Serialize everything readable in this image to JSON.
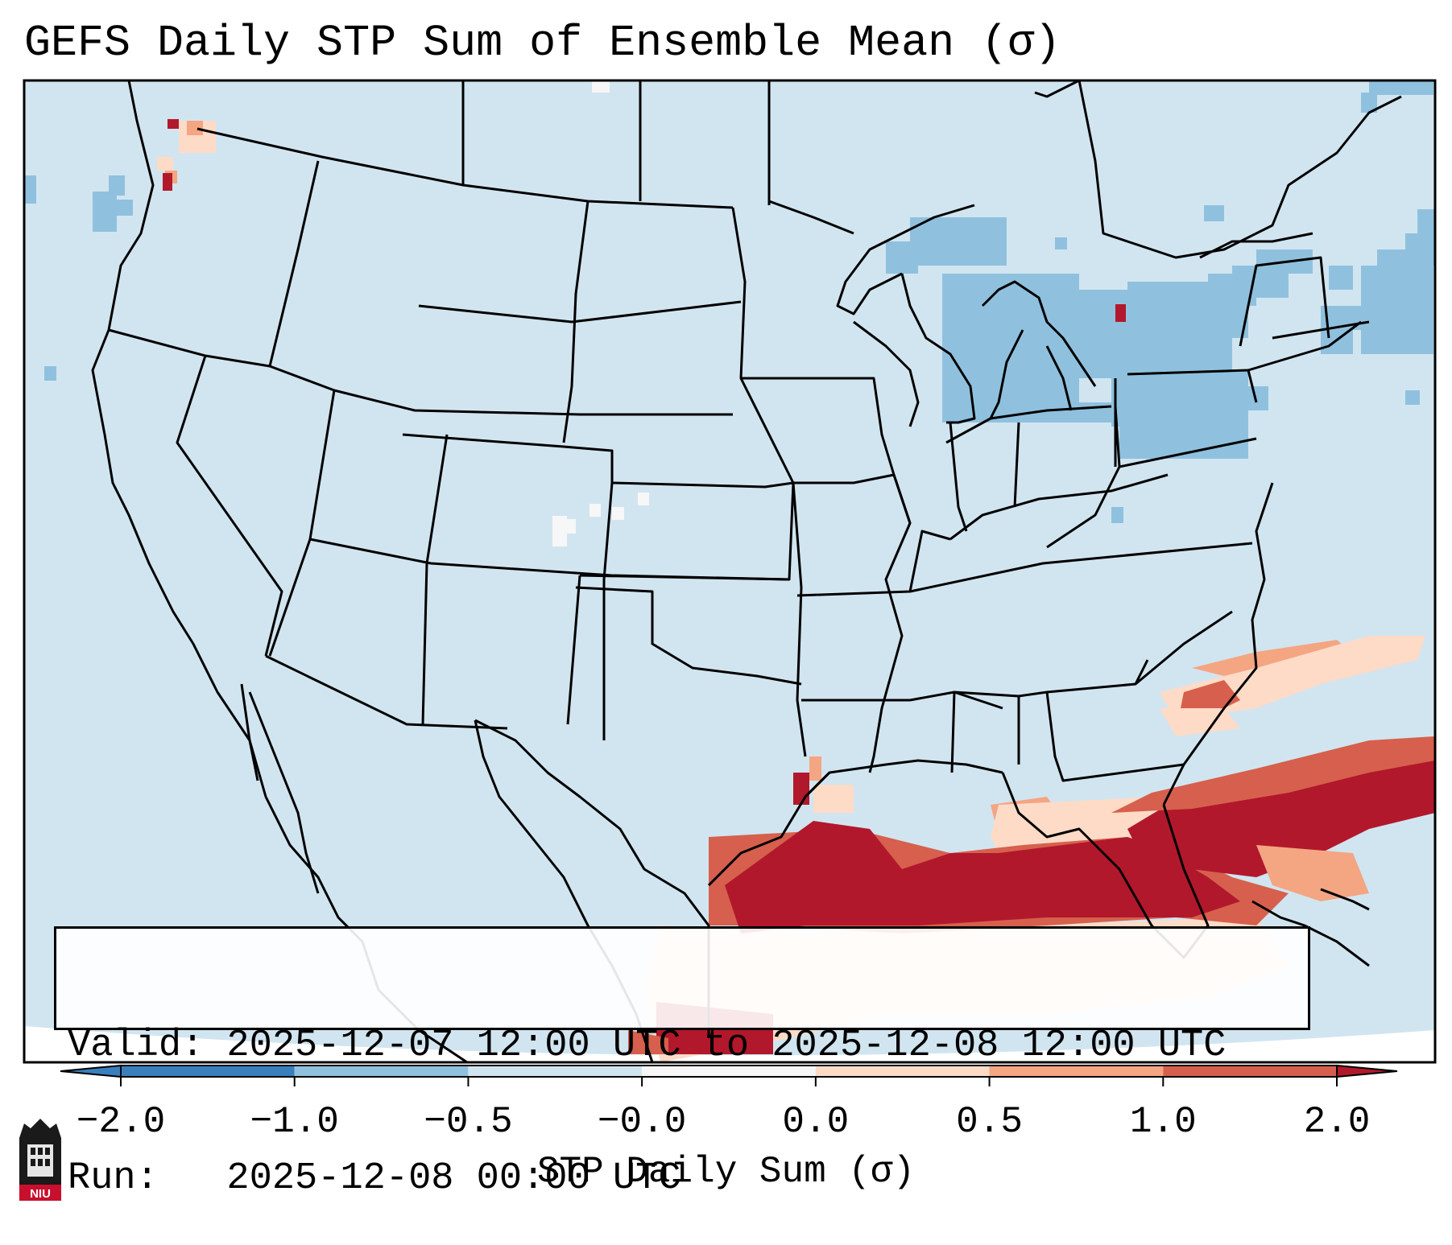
{
  "title": "GEFS Daily STP Sum of Ensemble Mean (σ)",
  "info": {
    "valid": "Valid: 2025-12-07 12:00 UTC to 2025-12-08 12:00 UTC",
    "run": "Run:   2025-12-08 00:00 UTC"
  },
  "colorbar": {
    "title": "STP Daily Sum (σ)",
    "ticks": [
      "−2.0",
      "−1.0",
      "−0.5",
      "−0.0",
      "0.0",
      "0.5",
      "1.0",
      "2.0"
    ],
    "colors": [
      "#3a7fbd",
      "#8fc1de",
      "#d1e5f0",
      "#f7f7f7",
      "#fddbc7",
      "#f4a582",
      "#d6604d",
      "#b2182b"
    ]
  },
  "map": {
    "background_color": "#d1e5f0",
    "domain": "Contiguous United States, southern Canada, northern Mexico, Gulf of Mexico",
    "features": [
      "state-borders",
      "country-borders",
      "coastlines",
      "great-lakes"
    ],
    "anomalies": [
      {
        "region": "Gulf of Mexico to Florida and western Atlantic",
        "level": "2.0"
      },
      {
        "region": "Atlantic off Carolinas",
        "level": "1.0"
      },
      {
        "region": "Puget Sound, Washington",
        "level": "2.0"
      },
      {
        "region": "Great Lakes and Northeast",
        "level": "-0.5"
      }
    ]
  },
  "logo": {
    "text": "NIU",
    "icon": "niu-huskie-castle-icon"
  }
}
